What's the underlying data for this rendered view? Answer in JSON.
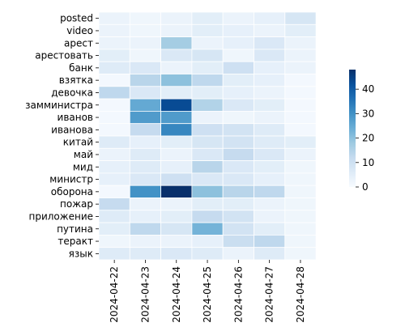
{
  "chart_data": {
    "type": "heatmap",
    "title": "",
    "xlabel": "",
    "ylabel": "",
    "x_categories": [
      "2024-04-22",
      "2024-04-23",
      "2024-04-24",
      "2024-04-25",
      "2024-04-26",
      "2024-04-27",
      "2024-04-28"
    ],
    "y_categories": [
      "posted",
      "video",
      "арест",
      "арестовать",
      "банк",
      "взятка",
      "девочка",
      "замминистра",
      "иванов",
      "иванова",
      "китай",
      "май",
      "мид",
      "министр",
      "оборона",
      "пожар",
      "приложение",
      "путина",
      "теракт",
      "язык"
    ],
    "values": [
      [
        3,
        2,
        3,
        5,
        3,
        4,
        8
      ],
      [
        3,
        2,
        3,
        5,
        4,
        3,
        5
      ],
      [
        3,
        3,
        17,
        3,
        4,
        7,
        3
      ],
      [
        5,
        2,
        7,
        8,
        2,
        7,
        3
      ],
      [
        6,
        7,
        3,
        5,
        10,
        4,
        3
      ],
      [
        1,
        14,
        20,
        13,
        5,
        4,
        1
      ],
      [
        13,
        7,
        5,
        5,
        4,
        3,
        1
      ],
      [
        1,
        25,
        43,
        15,
        7,
        5,
        1
      ],
      [
        1,
        28,
        28,
        3,
        2,
        3,
        1
      ],
      [
        1,
        12,
        32,
        10,
        9,
        6,
        1
      ],
      [
        6,
        4,
        5,
        8,
        9,
        6,
        5
      ],
      [
        3,
        6,
        3,
        7,
        12,
        7,
        3
      ],
      [
        4,
        6,
        4,
        14,
        7,
        5,
        2
      ],
      [
        4,
        7,
        10,
        7,
        7,
        4,
        2
      ],
      [
        1,
        30,
        48,
        20,
        14,
        13,
        2
      ],
      [
        12,
        3,
        3,
        5,
        5,
        3,
        2
      ],
      [
        6,
        4,
        5,
        12,
        9,
        3,
        2
      ],
      [
        5,
        13,
        8,
        23,
        9,
        5,
        2
      ],
      [
        2,
        3,
        3,
        4,
        11,
        13,
        2
      ],
      [
        6,
        6,
        7,
        6,
        3,
        6,
        2
      ]
    ],
    "vmin": 0,
    "vmax": 48,
    "colormap": "Blues",
    "colorbar_ticks": [
      0,
      10,
      20,
      30,
      40
    ],
    "grid": true
  }
}
